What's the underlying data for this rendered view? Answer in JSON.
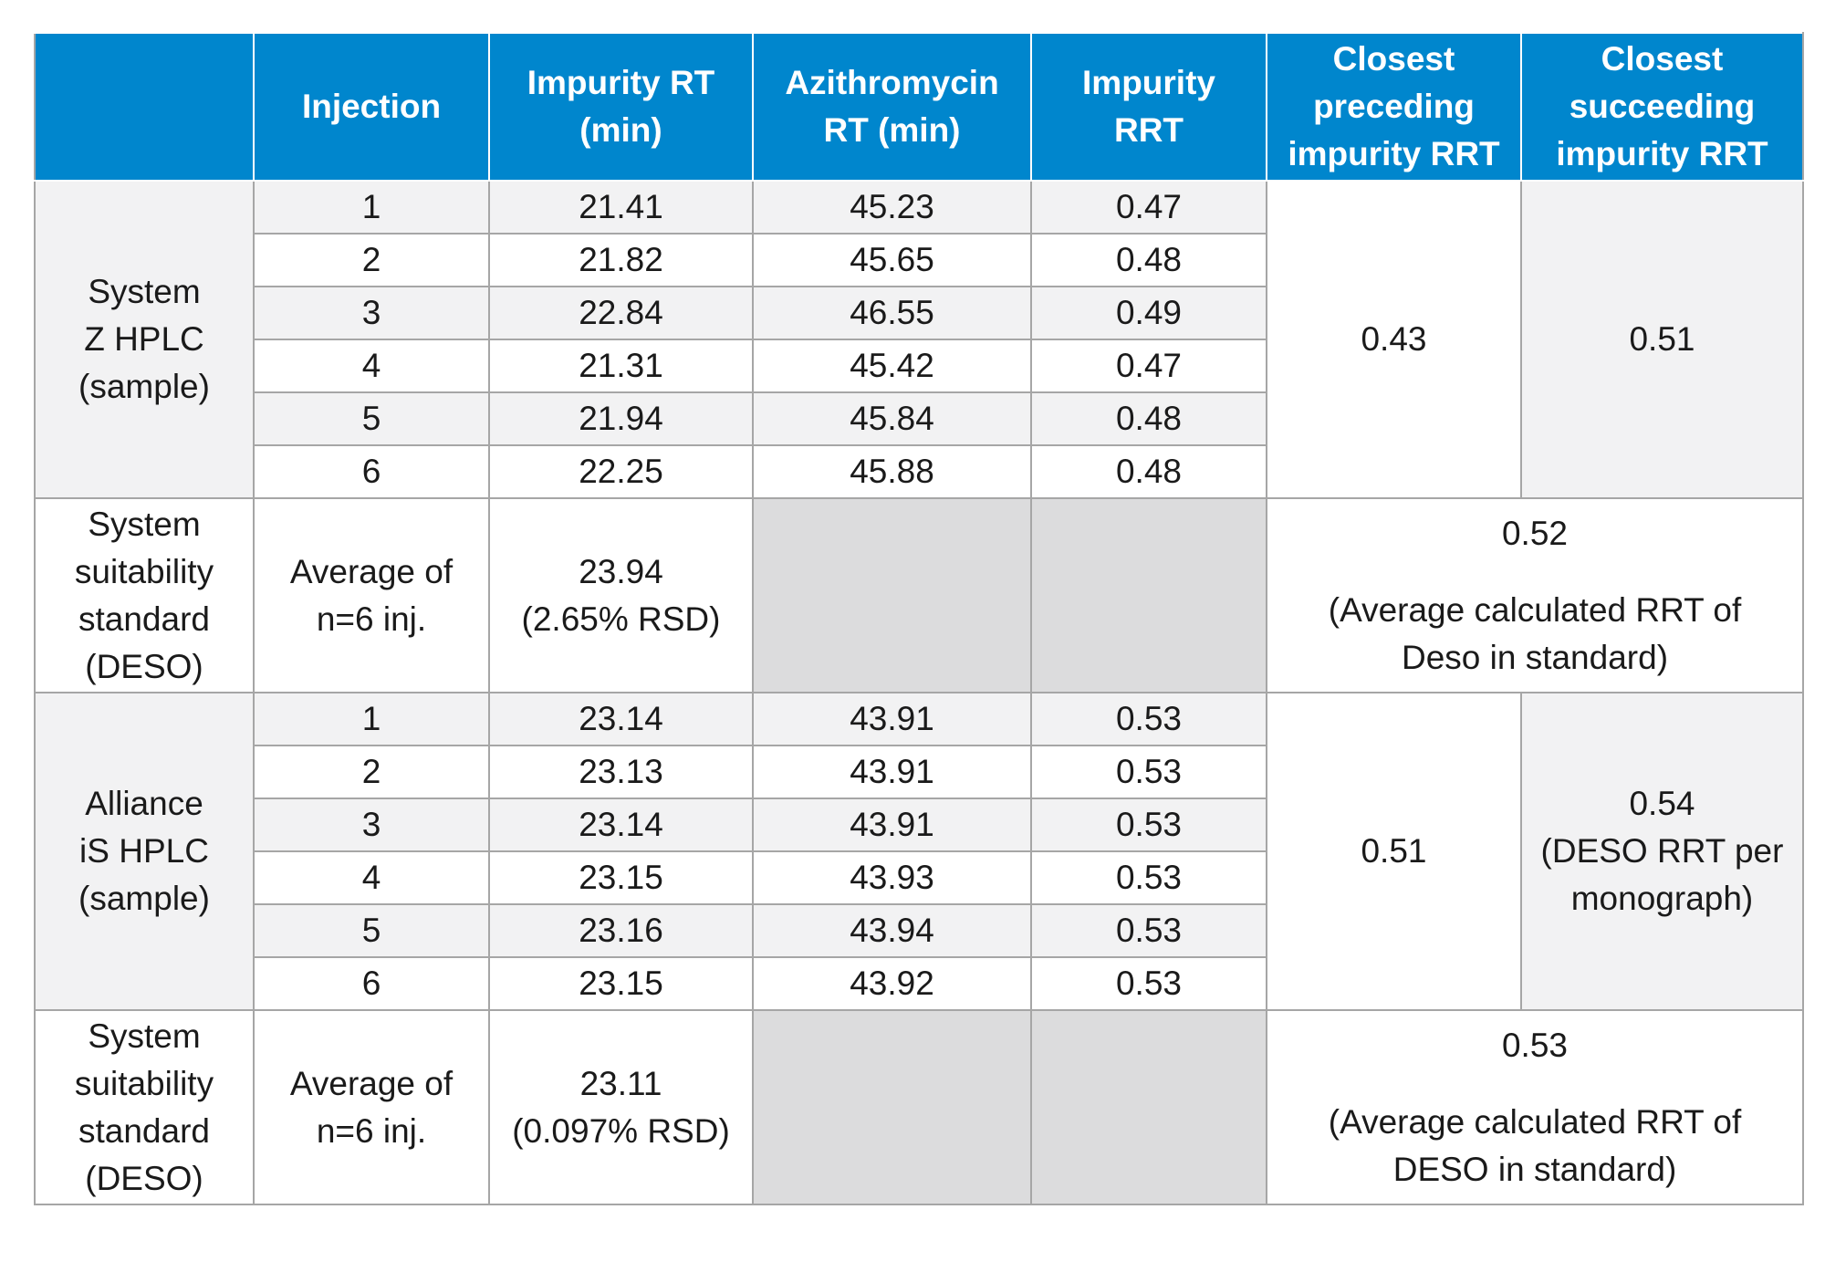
{
  "headers": [
    "",
    "Injection",
    "Impurity RT\n(min)",
    "Azithromycin\nRT (min)",
    "Impurity\nRRT",
    "Closest\npreceding\nimpurity RRT",
    "Closest\nsucceeding\nimpurity RRT"
  ],
  "header_lines": [
    [],
    [
      "Injection"
    ],
    [
      "Impurity RT",
      "(min)"
    ],
    [
      "Azithromycin",
      "RT (min)"
    ],
    [
      "Impurity",
      "RRT"
    ],
    [
      "Closest",
      "preceding",
      "impurity RRT"
    ],
    [
      "Closest",
      "succeeding",
      "impurity RRT"
    ]
  ],
  "system_z": {
    "label_lines": [
      "System",
      "Z HPLC",
      "(sample)"
    ],
    "rows": [
      {
        "injection": "1",
        "impurity_rt": "21.41",
        "azithro_rt": "45.23",
        "rrt": "0.47"
      },
      {
        "injection": "2",
        "impurity_rt": "21.82",
        "azithro_rt": "45.65",
        "rrt": "0.48"
      },
      {
        "injection": "3",
        "impurity_rt": "22.84",
        "azithro_rt": "46.55",
        "rrt": "0.49"
      },
      {
        "injection": "4",
        "impurity_rt": "21.31",
        "azithro_rt": "45.42",
        "rrt": "0.47"
      },
      {
        "injection": "5",
        "impurity_rt": "21.94",
        "azithro_rt": "45.84",
        "rrt": "0.48"
      },
      {
        "injection": "6",
        "impurity_rt": "22.25",
        "azithro_rt": "45.88",
        "rrt": "0.48"
      }
    ],
    "preceding_lines": [
      "0.43"
    ],
    "succeeding_lines": [
      "0.51"
    ]
  },
  "sst_1": {
    "label_lines": [
      "System",
      "suitability",
      "standard",
      "(DESO)"
    ],
    "injection_lines": [
      "Average of",
      "n=6 inj."
    ],
    "impurity_rt_lines": [
      "23.94",
      "(2.65% RSD)"
    ],
    "merged_value": "0.52",
    "merged_note_lines": [
      "(Average calculated RRT of",
      "Deso in standard)"
    ]
  },
  "alliance": {
    "label_lines": [
      "Alliance",
      "iS HPLC",
      "(sample)"
    ],
    "rows": [
      {
        "injection": "1",
        "impurity_rt": "23.14",
        "azithro_rt": "43.91",
        "rrt": "0.53"
      },
      {
        "injection": "2",
        "impurity_rt": "23.13",
        "azithro_rt": "43.91",
        "rrt": "0.53"
      },
      {
        "injection": "3",
        "impurity_rt": "23.14",
        "azithro_rt": "43.91",
        "rrt": "0.53"
      },
      {
        "injection": "4",
        "impurity_rt": "23.15",
        "azithro_rt": "43.93",
        "rrt": "0.53"
      },
      {
        "injection": "5",
        "impurity_rt": "23.16",
        "azithro_rt": "43.94",
        "rrt": "0.53"
      },
      {
        "injection": "6",
        "impurity_rt": "23.15",
        "azithro_rt": "43.92",
        "rrt": "0.53"
      }
    ],
    "preceding_lines": [
      "0.51"
    ],
    "succeeding_lines": [
      "0.54",
      "(DESO RRT per",
      "monograph)"
    ]
  },
  "sst_2": {
    "label_lines": [
      "System",
      "suitability",
      "standard",
      "(DESO)"
    ],
    "injection_lines": [
      "Average of",
      "n=6 inj."
    ],
    "impurity_rt_lines": [
      "23.11",
      "(0.097% RSD)"
    ],
    "merged_value": "0.53",
    "merged_note_lines": [
      "(Average calculated RRT of",
      "DESO in standard)"
    ]
  },
  "colors": {
    "header_bg": "#0086cd",
    "header_text": "#ffffff",
    "row_gray": "#f2f2f3",
    "blank_cell": "#dcdcdd",
    "border": "#a6a6a6"
  }
}
